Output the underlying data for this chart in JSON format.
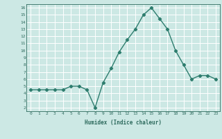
{
  "xlabel": "Humidex (Indice chaleur)",
  "x": [
    0,
    1,
    2,
    3,
    4,
    5,
    6,
    7,
    8,
    9,
    10,
    11,
    12,
    13,
    14,
    15,
    16,
    17,
    18,
    19,
    20,
    21,
    22,
    23
  ],
  "y": [
    4.5,
    4.5,
    4.5,
    4.5,
    4.5,
    5.0,
    5.0,
    4.5,
    2.0,
    5.5,
    7.5,
    9.8,
    11.5,
    13.0,
    15.0,
    16.0,
    14.5,
    13.0,
    10.0,
    8.0,
    6.0,
    6.5,
    6.5,
    6.0
  ],
  "line_color": "#2e7d6e",
  "bg_color": "#cce8e4",
  "grid_color": "#ffffff",
  "tick_color": "#2e6b5e",
  "label_color": "#2e6b5e",
  "ylim": [
    1.5,
    16.5
  ],
  "xlim": [
    -0.5,
    23.5
  ],
  "yticks": [
    2,
    3,
    4,
    5,
    6,
    7,
    8,
    9,
    10,
    11,
    12,
    13,
    14,
    15,
    16
  ],
  "xticks": [
    0,
    1,
    2,
    3,
    4,
    5,
    6,
    7,
    8,
    9,
    10,
    11,
    12,
    13,
    14,
    15,
    16,
    17,
    18,
    19,
    20,
    21,
    22,
    23
  ],
  "marker": "D",
  "markersize": 2.2,
  "linewidth": 1.0
}
